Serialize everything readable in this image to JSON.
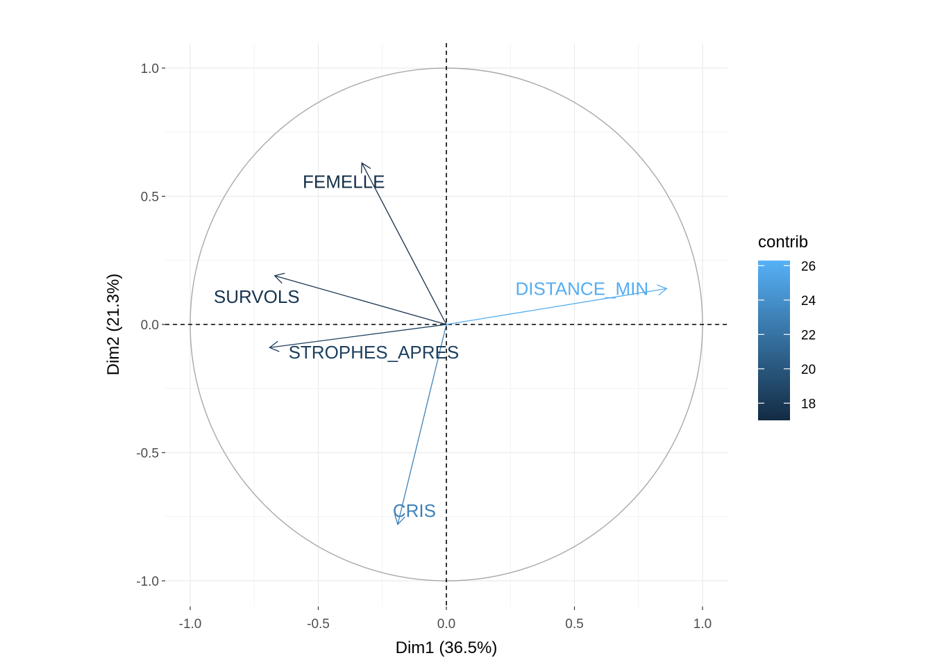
{
  "chart_data": {
    "type": "scatter",
    "subtype": "pca-variable-correlation-circle",
    "title": "",
    "xlabel": "Dim1 (36.5%)",
    "ylabel": "Dim2 (21.3%)",
    "xlim": [
      -1.1,
      1.1
    ],
    "ylim": [
      -1.1,
      1.1
    ],
    "x_ticks": [
      -1.0,
      -0.5,
      0.0,
      0.5,
      1.0
    ],
    "y_ticks": [
      -1.0,
      -0.5,
      0.0,
      0.5,
      1.0
    ],
    "x_tick_labels": [
      "-1.0",
      "-0.5",
      "0.0",
      "0.5",
      "1.0"
    ],
    "y_tick_labels": [
      "1.0",
      "0.5",
      "0.0",
      "-0.5",
      "-1.0"
    ],
    "grid": true,
    "unit_circle": true,
    "reference_lines": "dashed at x=0 and y=0",
    "variables": [
      {
        "name": "FEMELLE",
        "x": -0.33,
        "y": 0.63,
        "contrib": 17.2
      },
      {
        "name": "SURVOLS",
        "x": -0.67,
        "y": 0.19,
        "contrib": 17.6
      },
      {
        "name": "STROPHES_APRES",
        "x": -0.69,
        "y": -0.09,
        "contrib": 18.4
      },
      {
        "name": "DISTANCE_MIN",
        "x": 0.86,
        "y": 0.14,
        "contrib": 26.0
      },
      {
        "name": "CRIS",
        "x": -0.19,
        "y": -0.78,
        "contrib": 23.0
      }
    ],
    "color_scale": {
      "title": "contrib",
      "min": 17,
      "max": 26.3,
      "low_color": "#132B43",
      "high_color": "#56B1F7",
      "ticks": [
        18,
        20,
        22,
        24,
        26
      ],
      "tick_labels": [
        "18",
        "20",
        "22",
        "24",
        "26"
      ],
      "legend_position": "right"
    }
  }
}
